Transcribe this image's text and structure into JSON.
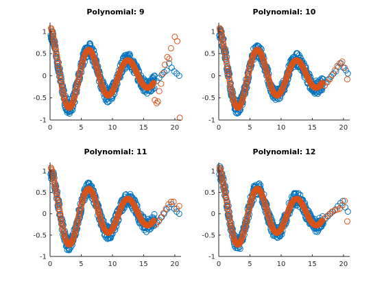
{
  "chart_data": [
    {
      "type": "scatter",
      "title": "Polynomial: 9",
      "xlim": [
        0,
        21
      ],
      "ylim": [
        -1,
        1.2
      ],
      "xticks": [
        "0",
        "5",
        "10",
        "15",
        "20"
      ],
      "yticks": [
        "-1",
        "-0.5",
        "0",
        "0.5",
        "1"
      ],
      "grid": false,
      "colors": {
        "data": "#0072BD",
        "fit": "#D95319"
      },
      "series": [
        {
          "role": "data",
          "x": [
            17.1,
            17.5,
            17.9,
            18.3,
            18.7,
            19.1,
            19.5,
            19.9,
            20.3,
            20.7
          ],
          "y": [
            -0.12,
            -0.05,
            0.02,
            0.08,
            0.12,
            0.28,
            0.18,
            0.1,
            0.05,
            0.0
          ]
        },
        {
          "role": "fit",
          "x": [
            16.8,
            17.1,
            17.3,
            17.5,
            17.8,
            18.1,
            18.4,
            18.8,
            19.1,
            19.4,
            20.0,
            20.4,
            20.8
          ],
          "y": [
            -0.55,
            -0.62,
            -0.58,
            -0.35,
            -0.18,
            0.05,
            0.25,
            0.42,
            0.38,
            0.62,
            0.88,
            0.78,
            -0.95
          ]
        }
      ]
    },
    {
      "type": "scatter",
      "title": "Polynomial: 10",
      "xlim": [
        0,
        21
      ],
      "ylim": [
        -1,
        1.2
      ],
      "xticks": [
        "0",
        "5",
        "10",
        "15",
        "20"
      ],
      "yticks": [
        "-1",
        "-0.5",
        "0",
        "0.5",
        "1"
      ],
      "grid": false,
      "colors": {
        "data": "#0072BD",
        "fit": "#D95319"
      },
      "series": [
        {
          "role": "data",
          "x": [
            17.2,
            17.6,
            18.0,
            18.4,
            18.8,
            19.2,
            19.6,
            20.0,
            20.4,
            20.7
          ],
          "y": [
            -0.15,
            -0.08,
            -0.02,
            0.05,
            0.1,
            0.2,
            0.28,
            0.18,
            0.12,
            0.05
          ]
        },
        {
          "role": "fit",
          "x": [
            17.0,
            17.4,
            17.8,
            18.2,
            18.6,
            19.0,
            19.4,
            19.8,
            20.2,
            20.6
          ],
          "y": [
            -0.22,
            -0.15,
            -0.08,
            0.02,
            0.12,
            0.22,
            0.28,
            0.32,
            0.18,
            -0.08
          ]
        }
      ]
    },
    {
      "type": "scatter",
      "title": "Polynomial: 11",
      "xlim": [
        0,
        21
      ],
      "ylim": [
        -1,
        1.2
      ],
      "xticks": [
        "0",
        "5",
        "10",
        "15",
        "20"
      ],
      "yticks": [
        "-1",
        "-0.5",
        "0",
        "0.5",
        "1"
      ],
      "grid": false,
      "colors": {
        "data": "#0072BD",
        "fit": "#D95319"
      },
      "series": [
        {
          "role": "data",
          "x": [
            17.1,
            17.5,
            17.9,
            18.3,
            18.7,
            19.1,
            19.5,
            19.9,
            20.3,
            20.7
          ],
          "y": [
            -0.2,
            -0.15,
            -0.08,
            0.0,
            0.1,
            0.15,
            0.22,
            0.12,
            0.05,
            0.0
          ]
        },
        {
          "role": "fit",
          "x": [
            17.0,
            17.4,
            17.8,
            18.2,
            18.6,
            19.0,
            19.4,
            19.8,
            20.3,
            20.7
          ],
          "y": [
            -0.25,
            -0.18,
            -0.08,
            0.02,
            0.12,
            0.22,
            0.28,
            0.28,
            0.12,
            0.18
          ]
        }
      ]
    },
    {
      "type": "scatter",
      "title": "Polynomial: 12",
      "xlim": [
        0,
        21
      ],
      "ylim": [
        -1,
        1.2
      ],
      "xticks": [
        "0",
        "5",
        "10",
        "15",
        "20"
      ],
      "yticks": [
        "-1",
        "-0.5",
        "0",
        "0.5",
        "1"
      ],
      "grid": false,
      "colors": {
        "data": "#0072BD",
        "fit": "#D95319"
      },
      "series": [
        {
          "role": "data",
          "x": [
            17.1,
            17.5,
            17.9,
            18.3,
            18.7,
            19.1,
            19.5,
            19.9,
            20.3,
            20.7
          ],
          "y": [
            -0.12,
            -0.06,
            0.0,
            0.05,
            0.1,
            0.18,
            0.25,
            0.3,
            0.15,
            0.05
          ]
        },
        {
          "role": "fit",
          "x": [
            17.0,
            17.4,
            17.8,
            18.2,
            18.6,
            19.0,
            19.4,
            19.8,
            20.2,
            20.6
          ],
          "y": [
            -0.1,
            -0.05,
            0.0,
            0.05,
            0.08,
            0.1,
            0.12,
            0.2,
            0.3,
            -0.18
          ]
        }
      ]
    }
  ]
}
